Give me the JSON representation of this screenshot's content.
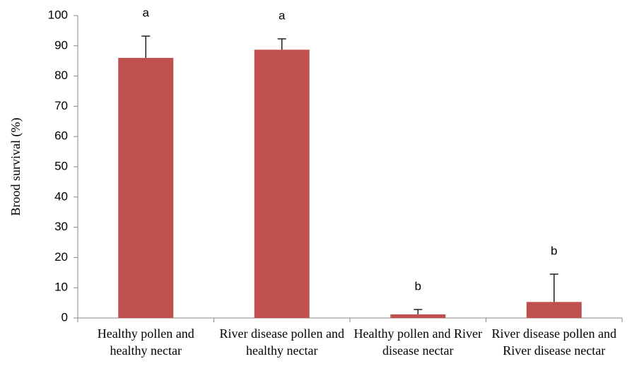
{
  "chart_data": {
    "type": "bar",
    "y_label": "Brood survival (%)",
    "categories": [
      "Healthy pollen and healthy nectar",
      "River disease pollen and healthy nectar",
      "Healthy pollen and River disease nectar",
      "River disease pollen and River disease nectar"
    ],
    "values": [
      86,
      88.7,
      1.2,
      5.3
    ],
    "errors": [
      7.2,
      3.6,
      1.6,
      9.2
    ],
    "annotations": [
      "a",
      "a",
      "b",
      "b"
    ],
    "color": "#c0504d",
    "ylim": [
      0,
      100
    ],
    "yticks": [
      0,
      10,
      20,
      30,
      40,
      50,
      60,
      70,
      80,
      90,
      100
    ],
    "grid": false
  }
}
